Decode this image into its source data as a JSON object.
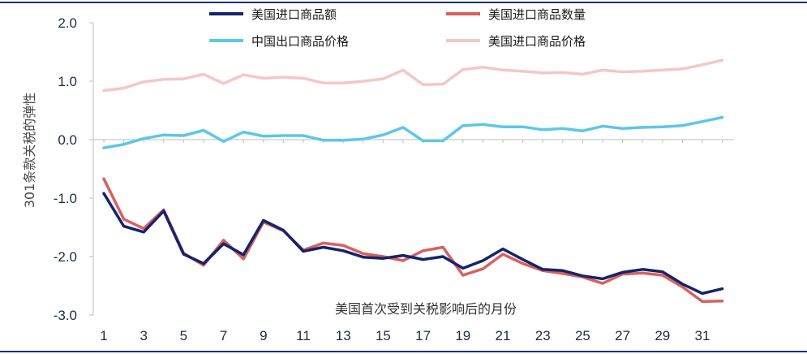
{
  "chart_data": {
    "type": "line",
    "title": "",
    "xlabel": "美国首次受到关税影响后的月份",
    "ylabel": "301条款关税的弹性",
    "ylim": [
      -3.0,
      2.0
    ],
    "yticks": [
      "2.0",
      "1.0",
      "0.0",
      "-1.0",
      "-2.0",
      "-3.0"
    ],
    "xticks": [
      "1",
      "3",
      "5",
      "7",
      "9",
      "11",
      "13",
      "15",
      "17",
      "19",
      "21",
      "23",
      "25",
      "27",
      "29",
      "31"
    ],
    "x": [
      1,
      2,
      3,
      4,
      5,
      6,
      7,
      8,
      9,
      10,
      11,
      12,
      13,
      14,
      15,
      16,
      17,
      18,
      19,
      20,
      21,
      22,
      23,
      24,
      25,
      26,
      27,
      28,
      29,
      30,
      31,
      32
    ],
    "legend_position": "top",
    "series": [
      {
        "name": "美国进口商品额",
        "color": "#14246b",
        "values": [
          -0.92,
          -1.48,
          -1.58,
          -1.22,
          -1.96,
          -2.12,
          -1.78,
          -1.97,
          -1.38,
          -1.55,
          -1.91,
          -1.84,
          -1.9,
          -2.01,
          -2.03,
          -1.98,
          -2.05,
          -2.0,
          -2.2,
          -2.07,
          -1.87,
          -2.05,
          -2.22,
          -2.24,
          -2.33,
          -2.38,
          -2.27,
          -2.22,
          -2.26,
          -2.47,
          -2.63,
          -2.55
        ]
      },
      {
        "name": "美国进口商品数量",
        "color": "#d9605f",
        "values": [
          -0.67,
          -1.36,
          -1.52,
          -1.2,
          -1.94,
          -2.15,
          -1.72,
          -2.04,
          -1.41,
          -1.56,
          -1.89,
          -1.77,
          -1.81,
          -1.95,
          -2.0,
          -2.07,
          -1.9,
          -1.84,
          -2.32,
          -2.21,
          -1.96,
          -2.12,
          -2.24,
          -2.29,
          -2.35,
          -2.46,
          -2.3,
          -2.28,
          -2.32,
          -2.52,
          -2.77,
          -2.76
        ]
      },
      {
        "name": "中国出口商品价格",
        "color": "#5bc8e6",
        "values": [
          -0.14,
          -0.08,
          0.02,
          0.08,
          0.07,
          0.16,
          -0.03,
          0.13,
          0.06,
          0.07,
          0.07,
          -0.01,
          -0.01,
          0.01,
          0.08,
          0.21,
          -0.02,
          -0.02,
          0.24,
          0.26,
          0.22,
          0.22,
          0.17,
          0.19,
          0.15,
          0.23,
          0.19,
          0.21,
          0.22,
          0.24,
          0.31,
          0.38
        ]
      },
      {
        "name": "美国进口商品价格",
        "color": "#f4c7c7",
        "values": [
          0.84,
          0.88,
          0.99,
          1.03,
          1.04,
          1.12,
          0.96,
          1.11,
          1.05,
          1.07,
          1.05,
          0.97,
          0.97,
          1.0,
          1.04,
          1.19,
          0.94,
          0.95,
          1.2,
          1.24,
          1.19,
          1.17,
          1.14,
          1.15,
          1.12,
          1.19,
          1.16,
          1.17,
          1.19,
          1.21,
          1.28,
          1.36
        ]
      }
    ]
  }
}
